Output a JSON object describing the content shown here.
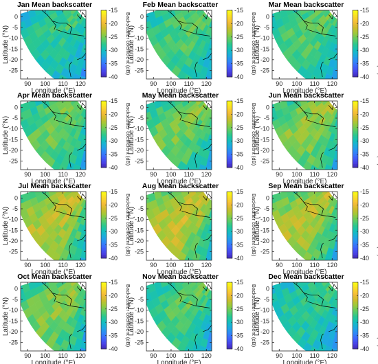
{
  "chart_data": [
    {
      "type": "heatmap",
      "title": "Jan Mean backscatter",
      "month": "Jan",
      "intensity": 0.42,
      "xlabel": "Longitude (°E)",
      "ylabel": "Latitude (°N)",
      "xticks": [
        90,
        100,
        110,
        120
      ],
      "yticks": [
        0,
        -5,
        -10,
        -15,
        -20,
        -25
      ],
      "xlim": [
        86,
        123
      ],
      "ylim": [
        -29,
        3
      ],
      "colorbar": {
        "label": "Backscatter coefficient (dB)",
        "ticks": [
          -15,
          -20,
          -25,
          -30,
          -35,
          -40
        ],
        "range": [
          -40,
          -15
        ]
      }
    },
    {
      "type": "heatmap",
      "title": "Feb Mean backscatter",
      "month": "Feb",
      "intensity": 0.55,
      "xlabel": "Longitude (°E)",
      "ylabel": "Latitude (°N)",
      "xticks": [
        90,
        100,
        110,
        120
      ],
      "yticks": [
        0,
        -5,
        -10,
        -15,
        -20,
        -25
      ],
      "xlim": [
        86,
        123
      ],
      "ylim": [
        -29,
        3
      ],
      "colorbar": {
        "label": "Backscatter coefficient (dB)",
        "ticks": [
          -15,
          -20,
          -25,
          -30,
          -35,
          -40
        ],
        "range": [
          -40,
          -15
        ]
      }
    },
    {
      "type": "heatmap",
      "title": "Mar Mean backscatter",
      "month": "Mar",
      "intensity": 0.55,
      "xlabel": "Longitude (°E)",
      "ylabel": "Latitude (°N)",
      "xticks": [
        90,
        100,
        110,
        120
      ],
      "yticks": [
        0,
        -5,
        -10,
        -15,
        -20,
        -25
      ],
      "xlim": [
        86,
        123
      ],
      "ylim": [
        -29,
        3
      ],
      "colorbar": {
        "label": "Backscatter coefficient (dB)",
        "ticks": [
          -15,
          -20,
          -25,
          -30,
          -35,
          -40
        ],
        "range": [
          -40,
          -15
        ]
      }
    },
    {
      "type": "heatmap",
      "title": "Apr Mean backscatter",
      "month": "Apr",
      "intensity": 0.6,
      "xlabel": "Longitude (°E)",
      "ylabel": "Latitude (°N)",
      "xticks": [
        90,
        100,
        110,
        120
      ],
      "yticks": [
        0,
        -5,
        -10,
        -15,
        -20,
        -25
      ],
      "xlim": [
        86,
        123
      ],
      "ylim": [
        -29,
        3
      ],
      "colorbar": {
        "label": "Backscatter coefficient (dB)",
        "ticks": [
          -15,
          -20,
          -25,
          -30,
          -35,
          -40
        ],
        "range": [
          -40,
          -15
        ]
      }
    },
    {
      "type": "heatmap",
      "title": "May Mean backscatter",
      "month": "May",
      "intensity": 0.65,
      "xlabel": "Longitude (°E)",
      "ylabel": "Latitude (°N)",
      "xticks": [
        90,
        100,
        110,
        120
      ],
      "yticks": [
        0,
        -5,
        -10,
        -15,
        -20,
        -25
      ],
      "xlim": [
        86,
        123
      ],
      "ylim": [
        -29,
        3
      ],
      "colorbar": {
        "label": "Backscatter coefficient (dB)",
        "ticks": [
          -15,
          -20,
          -25,
          -30,
          -35,
          -40
        ],
        "range": [
          -40,
          -15
        ]
      }
    },
    {
      "type": "heatmap",
      "title": "Jun Mean backscatter",
      "month": "Jun",
      "intensity": 0.72,
      "xlabel": "Longitude (°E)",
      "ylabel": "Latitude (°N)",
      "xticks": [
        90,
        100,
        110,
        120
      ],
      "yticks": [
        0,
        -5,
        -10,
        -15,
        -20,
        -25
      ],
      "xlim": [
        86,
        123
      ],
      "ylim": [
        -29,
        3
      ],
      "colorbar": {
        "label": "Backscatter coefficient (dB)",
        "ticks": [
          -15,
          -20,
          -25,
          -30,
          -35,
          -40
        ],
        "range": [
          -40,
          -15
        ]
      }
    },
    {
      "type": "heatmap",
      "title": "Jul Mean backscatter",
      "month": "Jul",
      "intensity": 0.85,
      "xlabel": "Longitude (°E)",
      "ylabel": "Latitude (°N)",
      "xticks": [
        90,
        100,
        110,
        120
      ],
      "yticks": [
        0,
        -5,
        -10,
        -15,
        -20,
        -25
      ],
      "xlim": [
        86,
        123
      ],
      "ylim": [
        -29,
        3
      ],
      "colorbar": {
        "label": "Backscatter coefficient (dB)",
        "ticks": [
          -15,
          -20,
          -25,
          -30,
          -35,
          -40
        ],
        "range": [
          -40,
          -15
        ]
      }
    },
    {
      "type": "heatmap",
      "title": "Aug Mean backscatter",
      "month": "Aug",
      "intensity": 0.88,
      "xlabel": "Longitude (°E)",
      "ylabel": "Latitude (°N)",
      "xticks": [
        90,
        100,
        110,
        120
      ],
      "yticks": [
        0,
        -5,
        -10,
        -15,
        -20,
        -25
      ],
      "xlim": [
        86,
        123
      ],
      "ylim": [
        -29,
        3
      ],
      "colorbar": {
        "label": "Backscatter coefficient (dB)",
        "ticks": [
          -15,
          -20,
          -25,
          -30,
          -35,
          -40
        ],
        "range": [
          -40,
          -15
        ]
      }
    },
    {
      "type": "heatmap",
      "title": "Sep Mean backscatter",
      "month": "Sep",
      "intensity": 0.82,
      "xlabel": "Longitude (°E)",
      "ylabel": "Latitude (°N)",
      "xticks": [
        90,
        100,
        110,
        120
      ],
      "yticks": [
        0,
        -5,
        -10,
        -15,
        -20,
        -25
      ],
      "xlim": [
        86,
        123
      ],
      "ylim": [
        -29,
        3
      ],
      "colorbar": {
        "label": "Backscatter coefficient (dB)",
        "ticks": [
          -15,
          -20,
          -25,
          -30,
          -35,
          -40
        ],
        "range": [
          -40,
          -15
        ]
      }
    },
    {
      "type": "heatmap",
      "title": "Oct Mean backscatter",
      "month": "Oct",
      "intensity": 0.68,
      "xlabel": "Longitude (°E)",
      "ylabel": "Latitude (°N)",
      "xticks": [
        90,
        100,
        110,
        120
      ],
      "yticks": [
        0,
        -5,
        -10,
        -15,
        -20,
        -25
      ],
      "xlim": [
        86,
        123
      ],
      "ylim": [
        -29,
        3
      ],
      "colorbar": {
        "label": "Backscatter coefficient (dB)",
        "ticks": [
          -15,
          -20,
          -25,
          -30,
          -35,
          -40
        ],
        "range": [
          -40,
          -15
        ]
      }
    },
    {
      "type": "heatmap",
      "title": "Nov Mean backscatter",
      "month": "Nov",
      "intensity": 0.55,
      "xlabel": "Longitude (°E)",
      "ylabel": "Latitude (°N)",
      "xticks": [
        90,
        100,
        110,
        120
      ],
      "yticks": [
        0,
        -5,
        -10,
        -15,
        -20,
        -25
      ],
      "xlim": [
        86,
        123
      ],
      "ylim": [
        -29,
        3
      ],
      "colorbar": {
        "label": "Backscatter coefficient (dB)",
        "ticks": [
          -15,
          -20,
          -25,
          -30,
          -35,
          -40
        ],
        "range": [
          -40,
          -15
        ]
      }
    },
    {
      "type": "heatmap",
      "title": "Dec Mean backscatter",
      "month": "Dec",
      "intensity": 0.42,
      "xlabel": "Longitude (°E)",
      "ylabel": "Latitude (°N)",
      "xticks": [
        90,
        100,
        110,
        120
      ],
      "yticks": [
        0,
        -5,
        -10,
        -15,
        -20,
        -25
      ],
      "xlim": [
        86,
        123
      ],
      "ylim": [
        -29,
        3
      ],
      "colorbar": {
        "label": "Backscatter coefficient (dB)",
        "ticks": [
          -15,
          -20,
          -25,
          -30,
          -35,
          -40
        ],
        "range": [
          -40,
          -15
        ]
      }
    }
  ],
  "colormap": [
    "#3e26a8",
    "#4a41e6",
    "#3f63fc",
    "#2f89f7",
    "#1daae0",
    "#14bfbd",
    "#2bc88f",
    "#62cc62",
    "#9dc93a",
    "#d0bc2c",
    "#f6bc38",
    "#fadb2a",
    "#f9fb15"
  ]
}
